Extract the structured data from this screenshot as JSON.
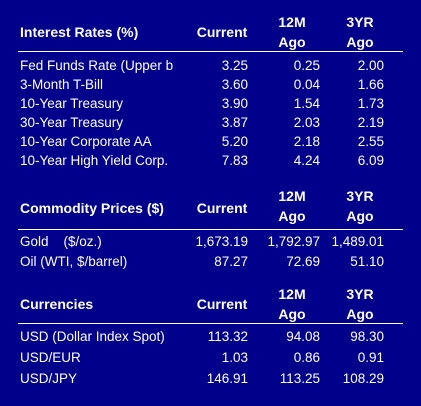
{
  "interest": {
    "header": {
      "label": "Interest Rates (%)",
      "current": "Current",
      "m12": "12M\nAgo",
      "yr3": "3YR\nAgo"
    },
    "rows": [
      {
        "name": "Fed Funds Rate (Upper b",
        "current": "3.25",
        "m12": "0.25",
        "yr3": "2.00"
      },
      {
        "name": "3-Month T-Bill",
        "current": "3.60",
        "m12": "0.04",
        "yr3": "1.66"
      },
      {
        "name": "10-Year Treasury",
        "current": "3.90",
        "m12": "1.54",
        "yr3": "1.73"
      },
      {
        "name": "30-Year Treasury",
        "current": "3.87",
        "m12": "2.03",
        "yr3": "2.19"
      },
      {
        "name": "10-Year Corporate AA",
        "current": "5.20",
        "m12": "2.18",
        "yr3": "2.55"
      },
      {
        "name": "10-Year High Yield Corp.",
        "current": "7.83",
        "m12": "4.24",
        "yr3": "6.09"
      }
    ]
  },
  "commodity": {
    "header": {
      "label": "Commodity Prices ($)",
      "current": "Current",
      "m12": "12M\nAgo",
      "yr3": "3YR\nAgo"
    },
    "rows": [
      {
        "name": "Gold    ($/oz.)",
        "current": "1,673.19",
        "m12": "1,792.97",
        "yr3": "1,489.01"
      },
      {
        "name": "Oil (WTI, $/barrel)",
        "current": "87.27",
        "m12": "72.69",
        "yr3": "51.10"
      }
    ]
  },
  "currencies": {
    "header": {
      "label": "Currencies",
      "current": "Current",
      "m12": "12M\nAgo",
      "yr3": "3YR\nAgo"
    },
    "rows": [
      {
        "name": "USD (Dollar Index Spot)",
        "current": "113.32",
        "m12": "94.08",
        "yr3": "98.30"
      },
      {
        "name": "USD/EUR",
        "current": "1.03",
        "m12": "0.86",
        "yr3": "0.91"
      },
      {
        "name": "USD/JPY",
        "current": "146.91",
        "m12": "113.25",
        "yr3": "108.29"
      }
    ]
  }
}
